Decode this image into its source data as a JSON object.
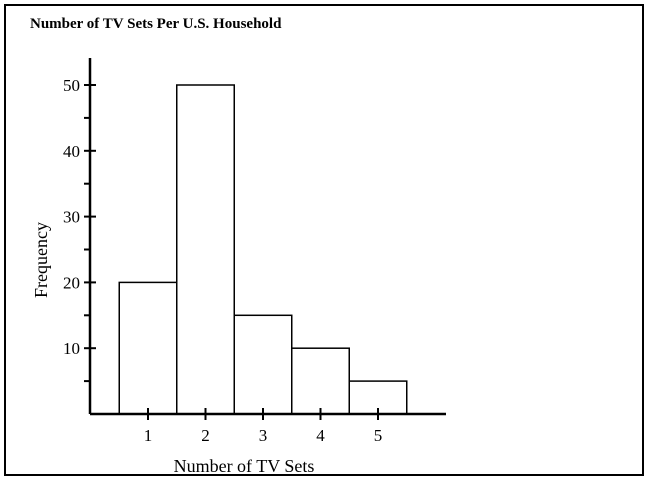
{
  "chart_data": {
    "type": "bar",
    "title": "Number of TV Sets Per U.S. Household",
    "xlabel": "Number of TV Sets",
    "ylabel": "Frequency",
    "categories": [
      "1",
      "2",
      "3",
      "4",
      "5"
    ],
    "values": [
      20,
      50,
      15,
      10,
      5
    ],
    "ylim": [
      0,
      50
    ],
    "yticks": [
      10,
      20,
      30,
      40,
      50
    ],
    "grid": false
  }
}
